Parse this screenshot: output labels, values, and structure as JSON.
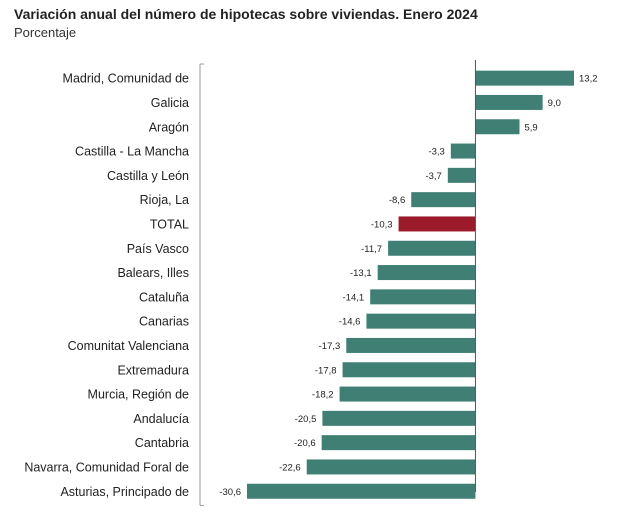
{
  "chart_data": {
    "type": "bar",
    "orientation": "horizontal",
    "title": "Variación anual del número de hipotecas sobre viviendas. Enero 2024",
    "subtitle": "Porcentaje",
    "categories": [
      "Madrid, Comunidad de",
      "Galicia",
      "Aragón",
      "Castilla - La Mancha",
      "Castilla y León",
      "Rioja, La",
      "TOTAL",
      "País Vasco",
      "Balears, Illes",
      "Cataluña",
      "Canarias",
      "Comunitat Valenciana",
      "Extremadura",
      "Murcia, Región de",
      "Andalucía",
      "Cantabria",
      "Navarra, Comunidad Foral de",
      "Asturias, Principado de"
    ],
    "values": [
      13.2,
      9.0,
      5.9,
      -3.3,
      -3.7,
      -8.6,
      -10.3,
      -11.7,
      -13.1,
      -14.1,
      -14.6,
      -17.3,
      -17.8,
      -18.2,
      -20.5,
      -20.6,
      -22.6,
      -30.6
    ],
    "value_labels": [
      "13,2",
      "9,0",
      "5,9",
      "-3,3",
      "-3,7",
      "-8,6",
      "-10,3",
      "-11,7",
      "-13,1",
      "-14,1",
      "-14,6",
      "-17,3",
      "-17,8",
      "-18,2",
      "-20,5",
      "-20,6",
      "-22,6",
      "-30,6"
    ],
    "highlight_category": "TOTAL",
    "xlim": [
      -30.6,
      13.2
    ],
    "colors": {
      "bar": "#3f7f74",
      "highlight": "#9b1b2a",
      "axis": "#555555"
    }
  }
}
